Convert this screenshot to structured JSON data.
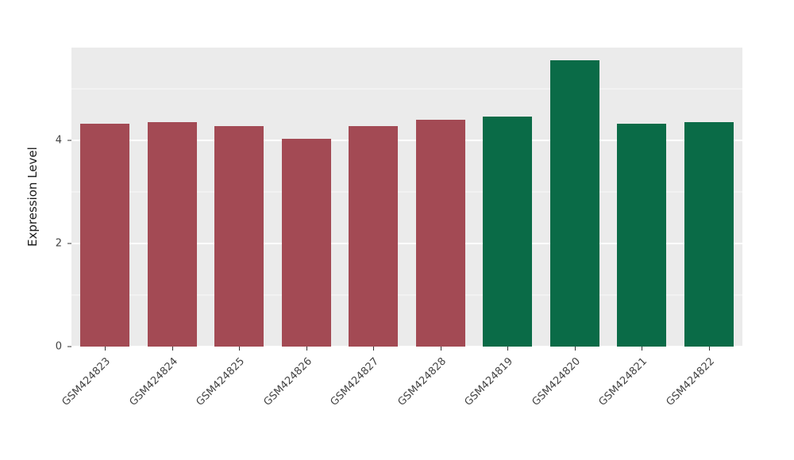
{
  "chart_data": {
    "type": "bar",
    "title": "",
    "categories": [
      "GSM424823",
      "GSM424824",
      "GSM424825",
      "GSM424826",
      "GSM424827",
      "GSM424828",
      "GSM424819",
      "GSM424820",
      "GSM424821",
      "GSM424822"
    ],
    "values": [
      4.32,
      4.35,
      4.27,
      4.03,
      4.27,
      4.4,
      4.46,
      5.55,
      4.32,
      4.36
    ],
    "bar_colors": [
      "#A34A54",
      "#A34A54",
      "#A34A54",
      "#A34A54",
      "#A34A54",
      "#A34A54",
      "#0A6B47",
      "#0A6B47",
      "#0A6B47",
      "#0A6B47"
    ],
    "xlabel": "",
    "ylabel": "Expression Level",
    "ylim": [
      0,
      5.8
    ],
    "yticks": [
      0,
      2,
      4
    ],
    "minor_ticks": [
      1,
      3,
      5
    ],
    "grid": true,
    "legend": "none",
    "panel_background": "#EBEBEB",
    "gridline_color": "#FFFFFF",
    "tick_color": "#333333",
    "label_color": "#444444"
  }
}
